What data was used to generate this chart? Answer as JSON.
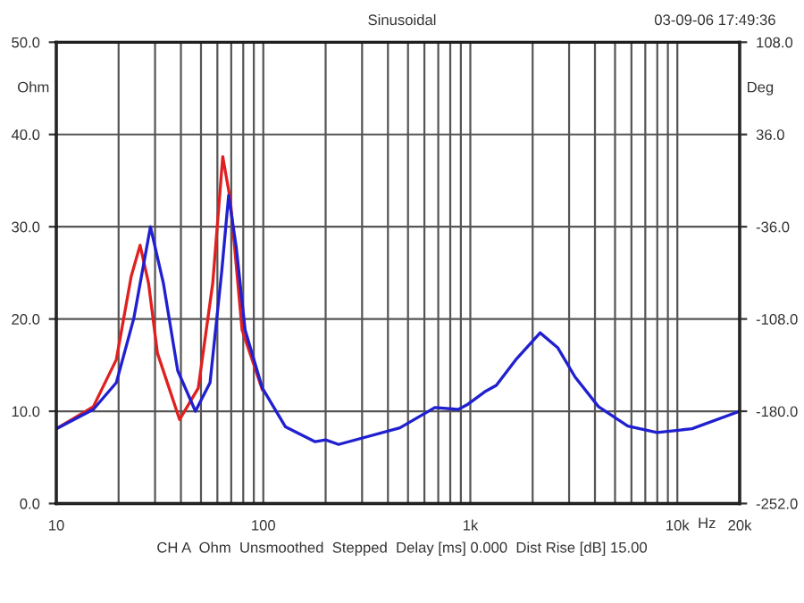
{
  "chart_data": {
    "type": "line",
    "title": "Sinusoidal",
    "ylabel": "Ohm",
    "y2label": "Deg",
    "xlabel": "Hz",
    "annotations": [
      "03-09-06 17:49:36",
      "CH A  Ohm  Unsmoothed  Stepped  Delay [ms] 0.000  Dist Rise [dB] 15.00"
    ],
    "log": "x",
    "grid": true,
    "legend": false,
    "marker": "none",
    "line_style": "solid",
    "xlim": [
      10,
      20000
    ],
    "xticks": [
      {
        "value": 10,
        "label": "10"
      },
      {
        "value": 20,
        "label": null
      },
      {
        "value": 30,
        "label": null
      },
      {
        "value": 40,
        "label": null
      },
      {
        "value": 50,
        "label": null
      },
      {
        "value": 60,
        "label": null
      },
      {
        "value": 70,
        "label": null
      },
      {
        "value": 80,
        "label": null
      },
      {
        "value": 90,
        "label": null
      },
      {
        "value": 100,
        "label": "100"
      },
      {
        "value": 200,
        "label": null
      },
      {
        "value": 300,
        "label": null
      },
      {
        "value": 400,
        "label": null
      },
      {
        "value": 500,
        "label": null
      },
      {
        "value": 600,
        "label": null
      },
      {
        "value": 700,
        "label": null
      },
      {
        "value": 800,
        "label": null
      },
      {
        "value": 900,
        "label": null
      },
      {
        "value": 1000,
        "label": "1k"
      },
      {
        "value": 2000,
        "label": null
      },
      {
        "value": 3000,
        "label": null
      },
      {
        "value": 4000,
        "label": null
      },
      {
        "value": 5000,
        "label": null
      },
      {
        "value": 6000,
        "label": null
      },
      {
        "value": 7000,
        "label": null
      },
      {
        "value": 8000,
        "label": null
      },
      {
        "value": 9000,
        "label": null
      },
      {
        "value": 10000,
        "label": "10k"
      },
      {
        "value": 20000,
        "label": "20k"
      }
    ],
    "ylim": [
      0,
      50
    ],
    "yticks": [
      {
        "value": 0,
        "label": "0.0"
      },
      {
        "value": 10,
        "label": "10.0"
      },
      {
        "value": 20,
        "label": "20.0"
      },
      {
        "value": 30,
        "label": "30.0"
      },
      {
        "value": 40,
        "label": "40.0"
      },
      {
        "value": 50,
        "label": "50.0"
      }
    ],
    "y2lim": [
      -252,
      108
    ],
    "y2ticks": [
      {
        "value": -252,
        "label": "-252.0"
      },
      {
        "value": -180,
        "label": "-180.0"
      },
      {
        "value": -108,
        "label": "-108.0"
      },
      {
        "value": -36,
        "label": "-36.0"
      },
      {
        "value": 36,
        "label": "36.0"
      },
      {
        "value": 108,
        "label": "108.0"
      }
    ],
    "series": [
      {
        "color": "#e02020",
        "x": [
          10,
          15.1,
          19.5,
          23,
          25.4,
          27.9,
          30.8,
          39.4,
          48.5,
          57,
          63.7,
          69.3,
          79,
          99
        ],
        "values": [
          8.1,
          10.5,
          15.6,
          24.6,
          28.0,
          23.9,
          16.3,
          9.1,
          12.5,
          23.9,
          37.6,
          32.9,
          18.8,
          12.3
        ]
      },
      {
        "color": "#2020d0",
        "x": [
          10,
          15.1,
          19.5,
          23.7,
          28.5,
          32.9,
          38.6,
          47,
          55.3,
          63,
          68,
          74,
          81.7,
          99,
          128,
          178,
          200,
          231,
          457,
          674,
          875,
          964,
          1172,
          1335,
          1675,
          2173,
          2641,
          3208,
          4160,
          5760,
          7980,
          11770,
          20000
        ],
        "values": [
          8.1,
          10.2,
          13.1,
          20.1,
          30.0,
          23.9,
          14.4,
          10.0,
          13.1,
          25.2,
          33.4,
          27.8,
          18.8,
          12.5,
          8.3,
          6.7,
          6.9,
          6.4,
          8.2,
          10.4,
          10.2,
          10.7,
          12.1,
          12.8,
          15.7,
          18.5,
          16.9,
          13.7,
          10.5,
          8.4,
          7.7,
          8.1,
          10.0
        ]
      }
    ]
  }
}
